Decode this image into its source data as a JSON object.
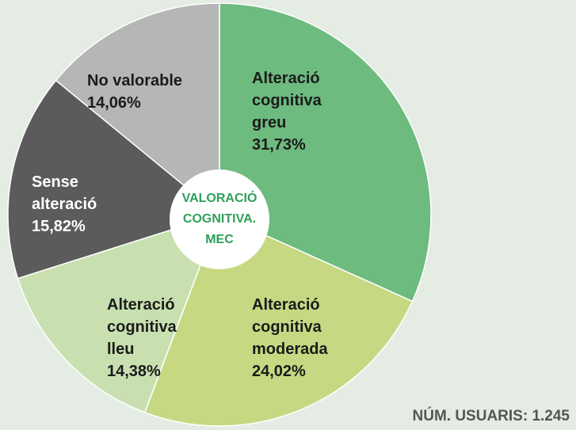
{
  "chart_data": {
    "type": "pie",
    "title": "VALORACIÓ COGNITIVA. MEC",
    "note": "NÚM. USUARIS: 1.245",
    "categories": [
      "Alteració cognitiva greu",
      "Alteració cognitiva moderada",
      "Alteració cognitiva lleu",
      "Sense alteració",
      "No valorable"
    ],
    "values": [
      31.73,
      24.02,
      14.38,
      15.82,
      14.06
    ],
    "value_labels": [
      "31,73%",
      "24,02%",
      "14,38%",
      "15,82%",
      "14,06%"
    ],
    "colors": [
      "#6dbb7f",
      "#c6d982",
      "#c8e0b0",
      "#5b5b5b",
      "#b6b6b6"
    ]
  }
}
